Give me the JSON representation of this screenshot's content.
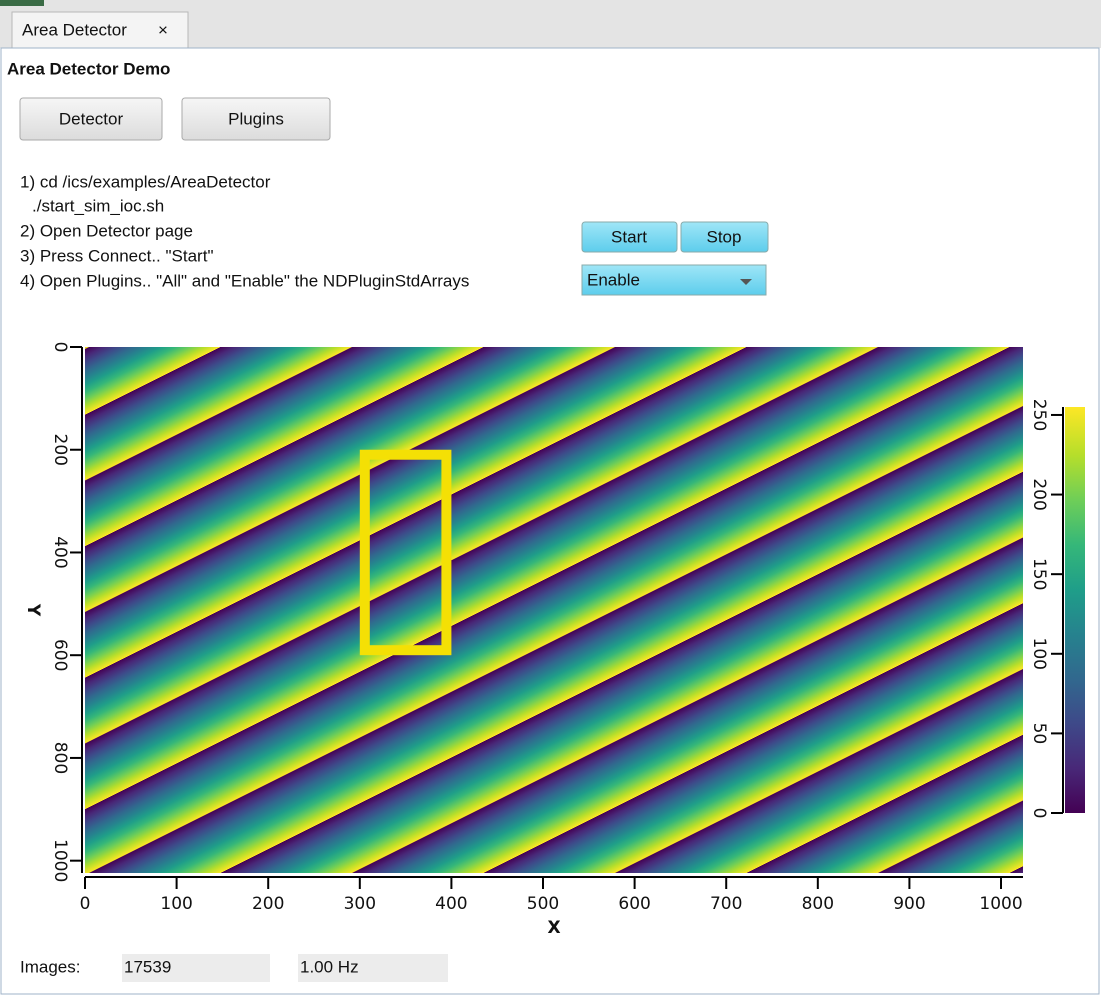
{
  "tab": {
    "label": "Area Detector",
    "close": "×"
  },
  "title": "Area Detector Demo",
  "buttons": [
    "Detector",
    "Plugins"
  ],
  "instructions": [
    "1) cd /ics/examples/AreaDetector",
    "./start_sim_ioc.sh",
    "2) Open Detector page",
    "3) Press Connect.. \"Start\"",
    "4) Open Plugins.. \"All\" and \"Enable\" the NDPluginStdArrays"
  ],
  "controls": {
    "start": "Start",
    "stop": "Stop",
    "combo": "Enable"
  },
  "image": {
    "x_label": "X",
    "y_label": "Y",
    "xlim": [
      0,
      1024
    ],
    "xticks": [
      0,
      100,
      200,
      300,
      400,
      500,
      600,
      700,
      800,
      900,
      1000
    ],
    "ylim": [
      1024,
      0
    ],
    "yticks": [
      0,
      200,
      400,
      600,
      800,
      1000
    ],
    "clim": [
      0,
      255
    ],
    "cticks": [
      0,
      50,
      100,
      150,
      200,
      250
    ],
    "roi": {
      "x": [
        300,
        400
      ],
      "y": [
        200,
        600
      ],
      "color": "#f4e005"
    }
  },
  "status": {
    "label": "Images:",
    "count": 17539,
    "rate": "1.00 Hz"
  }
}
